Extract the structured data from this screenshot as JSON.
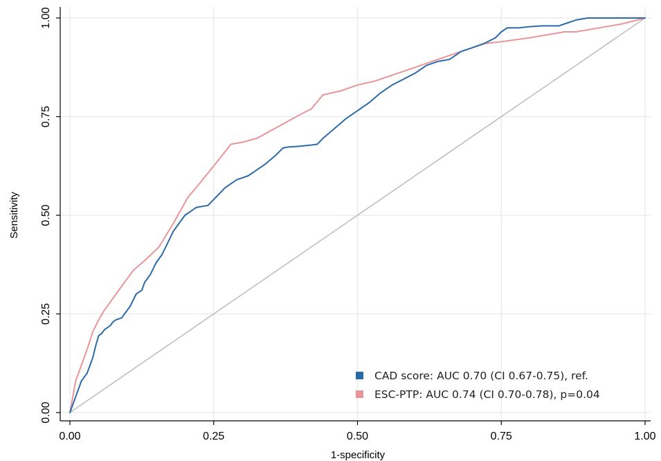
{
  "chart_data": {
    "type": "line",
    "xlabel": "1-specificity",
    "ylabel": "Sensitivity",
    "xlim": [
      0,
      1
    ],
    "ylim": [
      0,
      1
    ],
    "xticks": [
      "0.00",
      "0.25",
      "0.50",
      "0.75",
      "1.00"
    ],
    "yticks": [
      "0.00",
      "0.25",
      "0.50",
      "0.75",
      "1.00"
    ],
    "grid": true,
    "legend_position": "bottom-right",
    "series": [
      {
        "name": "CAD score: AUC 0.70 (CI 0.67-0.75), ref.",
        "color": "#2a6aa8",
        "x": [
          0,
          0.005,
          0.01,
          0.015,
          0.02,
          0.025,
          0.03,
          0.035,
          0.04,
          0.045,
          0.05,
          0.055,
          0.06,
          0.065,
          0.07,
          0.075,
          0.08,
          0.09,
          0.1,
          0.105,
          0.11,
          0.115,
          0.12,
          0.125,
          0.13,
          0.14,
          0.15,
          0.16,
          0.17,
          0.18,
          0.19,
          0.2,
          0.21,
          0.22,
          0.24,
          0.25,
          0.27,
          0.29,
          0.31,
          0.32,
          0.34,
          0.36,
          0.37,
          0.375,
          0.38,
          0.4,
          0.42,
          0.43,
          0.44,
          0.46,
          0.48,
          0.5,
          0.52,
          0.54,
          0.56,
          0.58,
          0.6,
          0.62,
          0.64,
          0.66,
          0.68,
          0.7,
          0.72,
          0.74,
          0.75,
          0.76,
          0.78,
          0.8,
          0.82,
          0.85,
          0.86,
          0.88,
          0.9,
          0.92,
          0.95,
          1.0
        ],
        "y": [
          0,
          0.02,
          0.04,
          0.06,
          0.08,
          0.09,
          0.1,
          0.12,
          0.14,
          0.17,
          0.195,
          0.2,
          0.21,
          0.215,
          0.22,
          0.23,
          0.235,
          0.24,
          0.26,
          0.27,
          0.285,
          0.3,
          0.305,
          0.31,
          0.33,
          0.35,
          0.38,
          0.4,
          0.43,
          0.46,
          0.48,
          0.5,
          0.51,
          0.52,
          0.525,
          0.54,
          0.57,
          0.59,
          0.6,
          0.61,
          0.63,
          0.655,
          0.67,
          0.672,
          0.673,
          0.675,
          0.678,
          0.68,
          0.695,
          0.72,
          0.745,
          0.765,
          0.785,
          0.81,
          0.83,
          0.845,
          0.86,
          0.88,
          0.89,
          0.895,
          0.915,
          0.925,
          0.935,
          0.95,
          0.965,
          0.975,
          0.975,
          0.978,
          0.98,
          0.98,
          0.985,
          0.995,
          1.0,
          1.0,
          1.0,
          1.0
        ]
      },
      {
        "name": "ESC-PTP:  AUC 0.74 (CI 0.70-0.78), p=0.04",
        "color": "#e8959a",
        "x": [
          0,
          0.005,
          0.01,
          0.02,
          0.03,
          0.04,
          0.05,
          0.06,
          0.08,
          0.1,
          0.11,
          0.13,
          0.155,
          0.18,
          0.205,
          0.225,
          0.25,
          0.28,
          0.3,
          0.325,
          0.35,
          0.375,
          0.4,
          0.42,
          0.44,
          0.47,
          0.5,
          0.53,
          0.56,
          0.6,
          0.64,
          0.66,
          0.7,
          0.72,
          0.75,
          0.8,
          0.86,
          0.88,
          0.92,
          0.96,
          1.0
        ],
        "y": [
          0,
          0.04,
          0.08,
          0.12,
          0.16,
          0.205,
          0.235,
          0.26,
          0.3,
          0.34,
          0.36,
          0.385,
          0.42,
          0.48,
          0.545,
          0.58,
          0.625,
          0.68,
          0.685,
          0.695,
          0.715,
          0.735,
          0.755,
          0.77,
          0.805,
          0.815,
          0.83,
          0.84,
          0.855,
          0.875,
          0.895,
          0.905,
          0.925,
          0.935,
          0.94,
          0.95,
          0.965,
          0.965,
          0.975,
          0.985,
          1.0
        ]
      }
    ],
    "reference_line": {
      "color": "#bbbbbb",
      "x": [
        0,
        1
      ],
      "y": [
        0,
        1
      ]
    }
  }
}
